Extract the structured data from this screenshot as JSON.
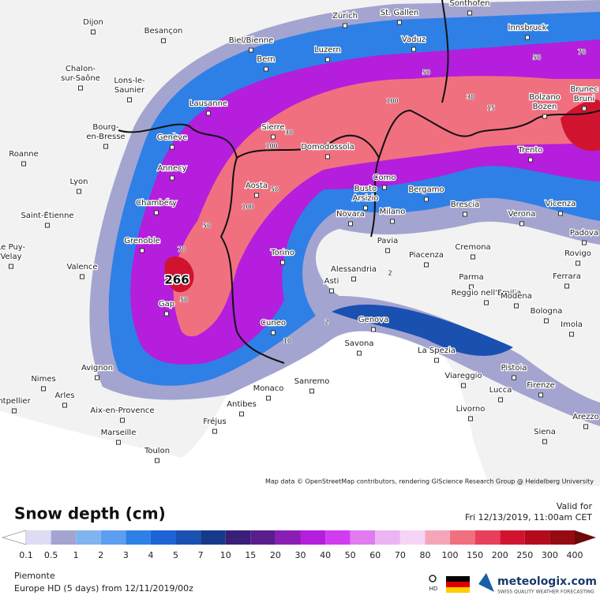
{
  "map": {
    "cities": [
      [
        "Dijon"
      ],
      [
        "Besançon"
      ],
      [
        "Biel/Bienne"
      ],
      [
        "Zürich"
      ],
      [
        "St. Gallen"
      ],
      [
        "Sonthofen"
      ],
      [
        "Innsbruck"
      ],
      [
        "Bern"
      ],
      [
        "Luzern"
      ],
      [
        "Vaduz"
      ],
      [
        "Chalon-",
        "sur-Saône"
      ],
      [
        "Lons-le-",
        "Saunier"
      ],
      [
        "Lausanne"
      ],
      [
        "Sierre"
      ],
      [
        "Domodossola"
      ],
      [
        "Brunec",
        "Bruni"
      ],
      [
        "Bolzano",
        "Bozen"
      ],
      [
        "Bourg-",
        "en-Bresse"
      ],
      [
        "Genève"
      ],
      [
        "Trento"
      ],
      [
        "Roanne"
      ],
      [
        "Annecy"
      ],
      [
        "Como"
      ],
      [
        "Busto",
        "Arsizio"
      ],
      [
        "Bergamo"
      ],
      [
        "Lyon"
      ],
      [
        "Aosta"
      ],
      [
        "Chambéry"
      ],
      [
        "Novara"
      ],
      [
        "Milano"
      ],
      [
        "Brescia"
      ],
      [
        "Verona"
      ],
      [
        "Vicenza"
      ],
      [
        "Saint-Étienne"
      ],
      [
        "Padova"
      ],
      [
        "Grenoble"
      ],
      [
        "Pavia"
      ],
      [
        "Cremona"
      ],
      [
        "Le Puy-",
        "Velay"
      ],
      [
        "Torino"
      ],
      [
        "Piacenza"
      ],
      [
        "Rovigo"
      ],
      [
        "Valence"
      ],
      [
        "Alessandria"
      ],
      [
        "Parma"
      ],
      [
        "Ferrara"
      ],
      [
        "Asti"
      ],
      [
        "Reggio nell'Emilia"
      ],
      [
        "Modena"
      ],
      [
        "Gap"
      ],
      [
        "Bologna"
      ],
      [
        "Cuneo"
      ],
      [
        "Genova"
      ],
      [
        "Imola"
      ],
      [
        "La Spezia"
      ],
      [
        "Savona"
      ],
      [
        "Avignon"
      ],
      [
        "Pistoia"
      ],
      [
        "Nimes"
      ],
      [
        "Viareggio"
      ],
      [
        "Arles"
      ],
      [
        "Sanremo"
      ],
      [
        "Monaco"
      ],
      [
        "Lucca"
      ],
      [
        "Firenze"
      ],
      [
        "ntpellier"
      ],
      [
        "Antibes"
      ],
      [
        "Aix-en-Provence"
      ],
      [
        "Livorno"
      ],
      [
        "Arezzo"
      ],
      [
        "Fréjus"
      ],
      [
        "Marseille"
      ],
      [
        "Siena"
      ],
      [
        "Toulon"
      ]
    ],
    "contour_labels": [
      "266",
      "100",
      "100",
      "50",
      "70",
      "50",
      "100",
      "30",
      "50",
      "70",
      "50",
      "30",
      "2",
      "10",
      "2",
      "15",
      "50"
    ],
    "attribution": "Map data © OpenStreetMap contributors, rendering GIScience Research Group @ Heidelberg University"
  },
  "legend": {
    "title": "Snow depth (cm)",
    "ticks": [
      0.1,
      0.5,
      1,
      2,
      3,
      4,
      5,
      7,
      10,
      15,
      20,
      30,
      40,
      50,
      60,
      70,
      80,
      100,
      150,
      200,
      250,
      300,
      400
    ],
    "under_color": "#ffffff",
    "colors": [
      "#dcdcf4",
      "#a4a4d0",
      "#80b4f0",
      "#5c9ef0",
      "#2e80e6",
      "#1e64d6",
      "#1a50b0",
      "#163a8a",
      "#3a1e78",
      "#5a1e8c",
      "#8a1eb4",
      "#b41edc",
      "#d23cf0",
      "#e07cf0",
      "#ecb4f4",
      "#f6d4f6",
      "#f4a6b8",
      "#f07080",
      "#e8405a",
      "#d01430",
      "#b40a1e",
      "#960a14"
    ],
    "over_color": "#6e0a0a"
  },
  "valid": {
    "label": "Valid for",
    "time": "Fri 12/13/2019, 11:00am CET"
  },
  "footer": {
    "region": "Piemonte",
    "model": "Europe HD (5 days)  from  12/11/2019/00z",
    "hd": "HD",
    "brand": "meteologix.com",
    "tagline": "SWISS QUALITY WEATHER FORECASTING"
  }
}
